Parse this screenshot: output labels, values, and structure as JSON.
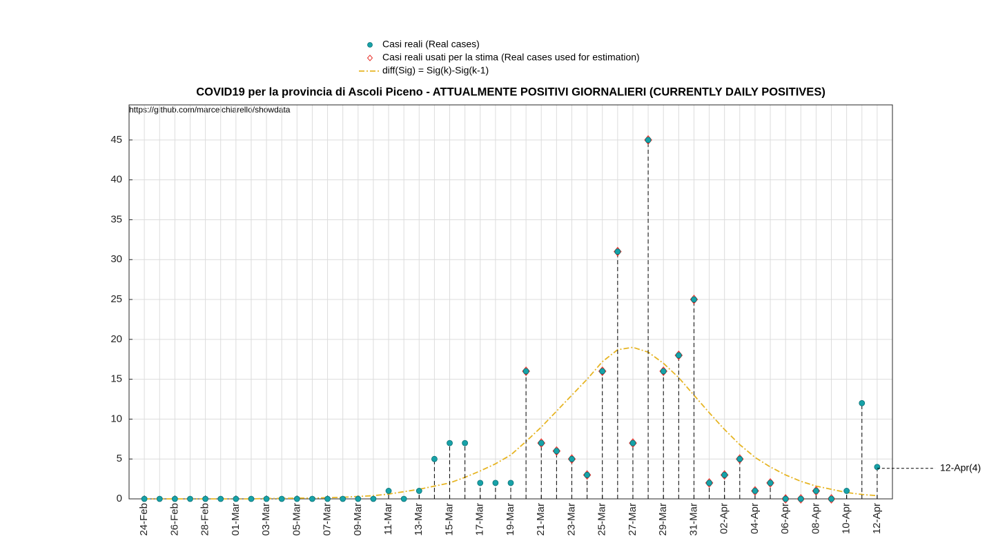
{
  "chart_data": {
    "type": "stem",
    "title": "COVID19 per la provincia di Ascoli Piceno - ATTUALMENTE POSITIVI GIORNALIERI (CURRENTLY DAILY POSITIVES)",
    "source": "https://github.com/marcelchiarello/showdata",
    "annotation": "12-Apr(4)",
    "categories": [
      "24-Feb",
      "25-Feb",
      "26-Feb",
      "27-Feb",
      "28-Feb",
      "29-Feb",
      "01-Mar",
      "02-Mar",
      "03-Mar",
      "04-Mar",
      "05-Mar",
      "06-Mar",
      "07-Mar",
      "08-Mar",
      "09-Mar",
      "10-Mar",
      "11-Mar",
      "12-Mar",
      "13-Mar",
      "14-Mar",
      "15-Mar",
      "16-Mar",
      "17-Mar",
      "18-Mar",
      "19-Mar",
      "20-Mar",
      "21-Mar",
      "22-Mar",
      "23-Mar",
      "24-Mar",
      "25-Mar",
      "26-Mar",
      "27-Mar",
      "28-Mar",
      "29-Mar",
      "30-Mar",
      "31-Mar",
      "01-Apr",
      "02-Apr",
      "03-Apr",
      "04-Apr",
      "05-Apr",
      "06-Apr",
      "07-Apr",
      "08-Apr",
      "09-Apr",
      "10-Apr",
      "11-Apr",
      "12-Apr"
    ],
    "xticks": [
      0,
      2,
      4,
      6,
      8,
      10,
      12,
      14,
      16,
      18,
      20,
      22,
      24,
      26,
      28,
      30,
      32,
      34,
      36,
      38,
      40,
      42,
      44,
      46,
      48
    ],
    "xlim": [
      -1,
      49
    ],
    "ylim": [
      0,
      49.4
    ],
    "yticks": [
      0,
      5,
      10,
      15,
      20,
      25,
      30,
      35,
      40,
      45
    ],
    "grid": true,
    "series": [
      {
        "name": "Casi reali (Real cases)",
        "color": "#17a2a8",
        "marker": "dot",
        "values": [
          0,
          0,
          0,
          0,
          0,
          0,
          0,
          0,
          0,
          0,
          0,
          0,
          0,
          0,
          0,
          0,
          1,
          0,
          1,
          5,
          7,
          7,
          2,
          2,
          2,
          16,
          7,
          6,
          5,
          3,
          16,
          31,
          7,
          45,
          16,
          18,
          25,
          2,
          3,
          5,
          1,
          2,
          0,
          0,
          1,
          0,
          1,
          12,
          4
        ]
      },
      {
        "name": "Casi reali usati per la stima (Real cases used for estimation)",
        "color": "#e8322b",
        "marker": "diamond",
        "values": [
          null,
          null,
          null,
          null,
          null,
          null,
          null,
          null,
          null,
          null,
          null,
          null,
          null,
          null,
          null,
          null,
          null,
          null,
          null,
          null,
          null,
          null,
          null,
          null,
          null,
          16,
          7,
          6,
          5,
          3,
          16,
          31,
          7,
          45,
          16,
          18,
          25,
          2,
          3,
          5,
          1,
          2,
          0,
          0,
          1,
          0,
          null,
          null,
          null
        ]
      },
      {
        "name": "diff(Sig) = Sig(k)-Sig(k-1)",
        "color": "#e6b422",
        "marker": "line",
        "values": [
          0,
          0,
          0,
          0,
          0,
          0,
          0,
          0,
          0.05,
          0.05,
          0.1,
          0.1,
          0.15,
          0.2,
          0.3,
          0.4,
          0.6,
          0.9,
          1.2,
          1.6,
          2,
          2.7,
          3.5,
          4.4,
          5.5,
          7.2,
          9,
          11,
          13,
          15,
          17.2,
          18.7,
          19,
          18.4,
          17,
          15.2,
          13,
          10.8,
          8.7,
          6.8,
          5.2,
          4,
          3,
          2.2,
          1.6,
          1.2,
          0.8,
          0.55,
          0.4
        ]
      }
    ]
  }
}
